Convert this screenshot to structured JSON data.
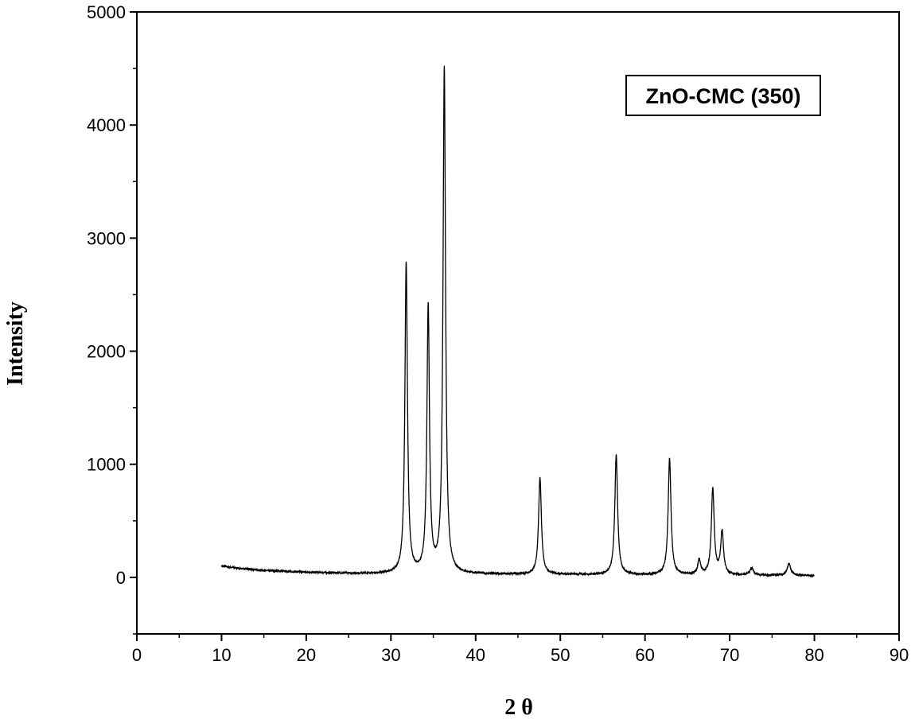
{
  "chart_data": {
    "type": "line",
    "title": "",
    "xlabel": "2 θ",
    "ylabel": "Intensity",
    "xlim": [
      0,
      90
    ],
    "ylim": [
      -500,
      5000
    ],
    "xticks": [
      0,
      10,
      20,
      30,
      40,
      50,
      60,
      70,
      80,
      90
    ],
    "yticks": [
      0,
      1000,
      2000,
      3000,
      4000,
      5000
    ],
    "grid": false,
    "legend": {
      "text": "ZnO-CMC (350)",
      "position": "top-right"
    },
    "series": [
      {
        "name": "",
        "color": "#000000",
        "background": [
          [
            10,
            100
          ],
          [
            12,
            80
          ],
          [
            15,
            60
          ],
          [
            20,
            45
          ],
          [
            25,
            35
          ],
          [
            30,
            30
          ],
          [
            35,
            30
          ],
          [
            40,
            28
          ],
          [
            50,
            25
          ],
          [
            60,
            22
          ],
          [
            70,
            20
          ],
          [
            80,
            15
          ]
        ],
        "peaks": [
          {
            "x": 31.8,
            "y": 2780,
            "w": 0.18
          },
          {
            "x": 34.4,
            "y": 2380,
            "w": 0.18
          },
          {
            "x": 36.3,
            "y": 4500,
            "w": 0.18
          },
          {
            "x": 47.6,
            "y": 880,
            "w": 0.2
          },
          {
            "x": 56.6,
            "y": 1080,
            "w": 0.2
          },
          {
            "x": 62.9,
            "y": 1050,
            "w": 0.2
          },
          {
            "x": 66.4,
            "y": 150,
            "w": 0.2
          },
          {
            "x": 68.0,
            "y": 780,
            "w": 0.2
          },
          {
            "x": 69.1,
            "y": 400,
            "w": 0.2
          },
          {
            "x": 72.6,
            "y": 80,
            "w": 0.25
          },
          {
            "x": 77.0,
            "y": 120,
            "w": 0.25
          }
        ]
      }
    ]
  }
}
